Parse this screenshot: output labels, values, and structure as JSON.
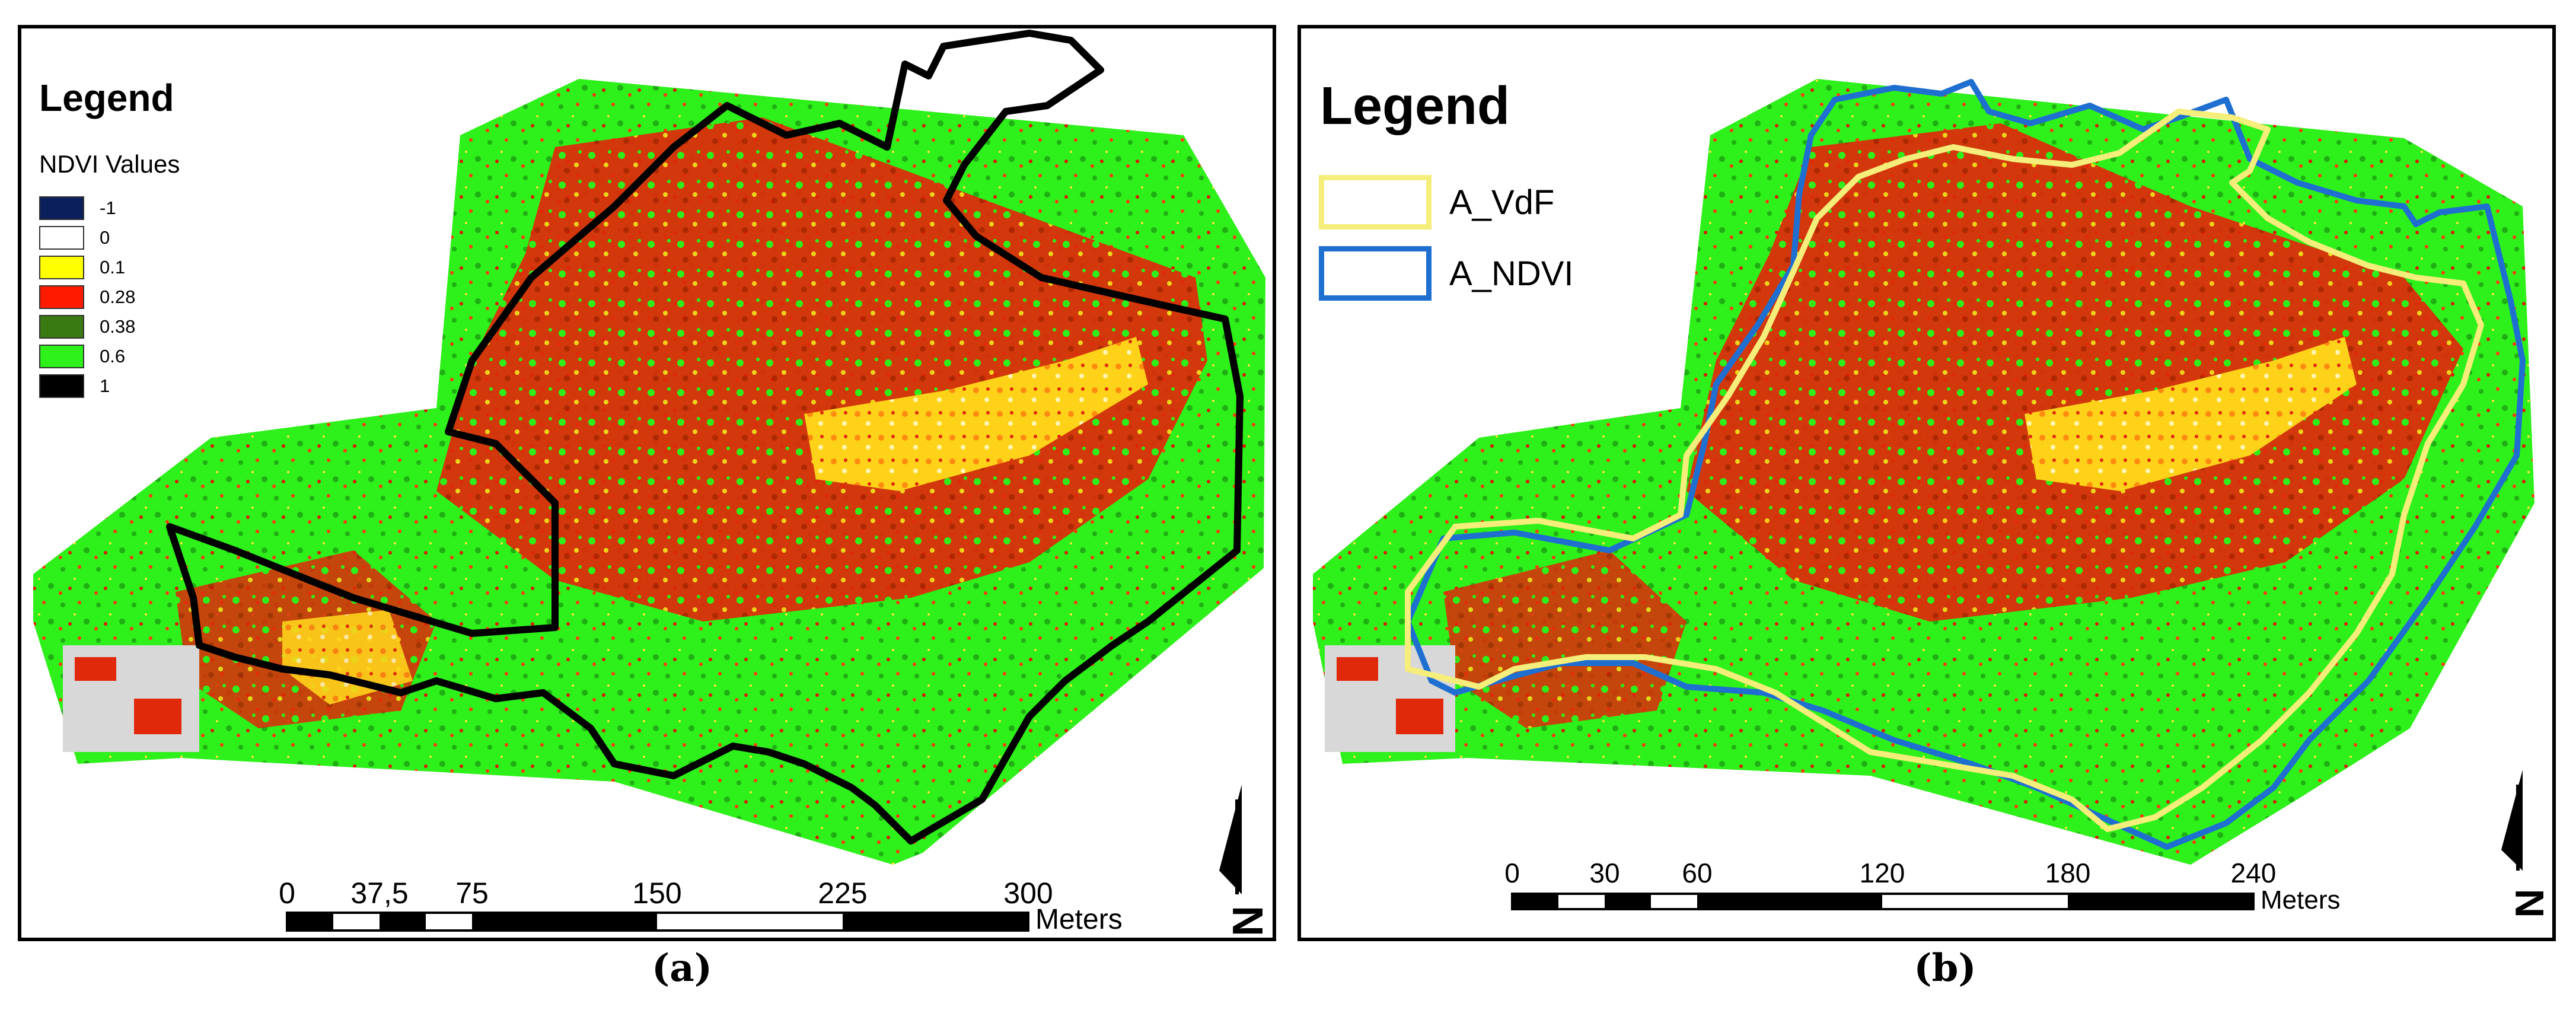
{
  "panel_a": {
    "legend_title": "Legend",
    "legend_subtitle": "NDVI Values",
    "ndvi_classes": [
      {
        "label": "-1",
        "color": "#0a1f5c"
      },
      {
        "label": "0",
        "color": "#ffffff"
      },
      {
        "label": "0.1",
        "color": "#ffff00"
      },
      {
        "label": "0.28",
        "color": "#ff1a00"
      },
      {
        "label": "0.38",
        "color": "#3a7a12"
      },
      {
        "label": "0.6",
        "color": "#2ef01a"
      },
      {
        "label": "1",
        "color": "#000000"
      }
    ],
    "boundary_color": "#000000",
    "scale_ticks": [
      "0",
      "37,5",
      "75",
      "150",
      "225",
      "300"
    ],
    "scale_unit": "Meters",
    "north_label": "N",
    "caption": "(a)"
  },
  "panel_b": {
    "legend_title": "Legend",
    "boundaries": [
      {
        "label": "A_VdF",
        "color": "#f5ee7a"
      },
      {
        "label": "A_NDVI",
        "color": "#1f6fd1"
      }
    ],
    "scale_ticks": [
      "0",
      "30",
      "60",
      "120",
      "180",
      "240"
    ],
    "scale_unit": "Meters",
    "north_label": "N",
    "caption": "(b)"
  },
  "colors": {
    "vegetation_high": "#2ef01a",
    "vegetation_mid": "#1fae14",
    "vegetation_low": "#ff1a00",
    "bare_soil": "#ffd21a"
  }
}
